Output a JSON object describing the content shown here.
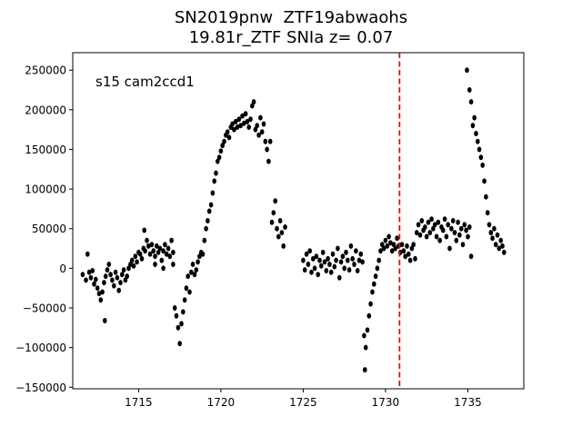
{
  "chart_data": {
    "type": "scatter",
    "title_line1": "SN2019pnw  ZTF19abwaohs",
    "title_line2": "19.81r_ZTF SNIa z= 0.07",
    "annotation": "s15 cam2ccd1",
    "xlabel": "",
    "ylabel": "",
    "xlim": [
      1711.0,
      1738.4
    ],
    "ylim": [
      -152000,
      272000
    ],
    "xticks": [
      {
        "value": 1715,
        "label": "1715"
      },
      {
        "value": 1720,
        "label": "1720"
      },
      {
        "value": 1725,
        "label": "1725"
      },
      {
        "value": 1730,
        "label": "1730"
      },
      {
        "value": 1735,
        "label": "1735"
      }
    ],
    "yticks": [
      {
        "value": -150000,
        "label": "−150000"
      },
      {
        "value": -100000,
        "label": "−100000"
      },
      {
        "value": -50000,
        "label": "−50000"
      },
      {
        "value": 0,
        "label": "0"
      },
      {
        "value": 50000,
        "label": "50000"
      },
      {
        "value": 100000,
        "label": "100000"
      },
      {
        "value": 150000,
        "label": "150000"
      },
      {
        "value": 200000,
        "label": "200000"
      },
      {
        "value": 250000,
        "label": "250000"
      }
    ],
    "vline": {
      "x": 1730.85,
      "color": "#ff0000",
      "style": "dashed"
    },
    "marker_color": "#000000",
    "grid": false,
    "series": [
      {
        "values": [
          [
            1711.6,
            -8000
          ],
          [
            1711.8,
            -15000
          ],
          [
            1711.9,
            18000
          ],
          [
            1712.0,
            -5000
          ],
          [
            1712.1,
            -12000
          ],
          [
            1712.2,
            -3000
          ],
          [
            1712.3,
            -20000
          ],
          [
            1712.4,
            -14000
          ],
          [
            1712.5,
            -25000
          ],
          [
            1712.6,
            -32000
          ],
          [
            1712.7,
            -40000
          ],
          [
            1712.8,
            -30000
          ],
          [
            1712.9,
            -18000
          ],
          [
            1712.95,
            -66000
          ],
          [
            1713.0,
            -10000
          ],
          [
            1713.1,
            -2000
          ],
          [
            1713.2,
            5000
          ],
          [
            1713.3,
            -8000
          ],
          [
            1713.4,
            -15000
          ],
          [
            1713.5,
            -22000
          ],
          [
            1713.6,
            -5000
          ],
          [
            1713.7,
            -12000
          ],
          [
            1713.8,
            -28000
          ],
          [
            1713.9,
            -18000
          ],
          [
            1714.0,
            -8000
          ],
          [
            1714.1,
            -2000
          ],
          [
            1714.2,
            -15000
          ],
          [
            1714.3,
            -10000
          ],
          [
            1714.4,
            0
          ],
          [
            1714.5,
            5000
          ],
          [
            1714.6,
            10000
          ],
          [
            1714.7,
            3000
          ],
          [
            1714.8,
            15000
          ],
          [
            1714.9,
            8000
          ],
          [
            1715.0,
            20000
          ],
          [
            1715.1,
            18000
          ],
          [
            1715.2,
            12000
          ],
          [
            1715.3,
            25000
          ],
          [
            1715.4,
            22000
          ],
          [
            1715.5,
            35000
          ],
          [
            1715.6,
            28000
          ],
          [
            1715.7,
            18000
          ],
          [
            1715.8,
            30000
          ],
          [
            1715.9,
            22000
          ],
          [
            1716.0,
            15000
          ],
          [
            1716.1,
            28000
          ],
          [
            1716.2,
            20000
          ],
          [
            1716.3,
            25000
          ],
          [
            1716.4,
            10000
          ],
          [
            1716.5,
            22000
          ],
          [
            1716.6,
            30000
          ],
          [
            1716.7,
            18000
          ],
          [
            1716.8,
            25000
          ],
          [
            1716.9,
            15000
          ],
          [
            1717.0,
            35000
          ],
          [
            1717.1,
            20000
          ],
          [
            1715.35,
            48000
          ],
          [
            1716.0,
            5000
          ],
          [
            1716.5,
            0
          ],
          [
            1717.1,
            5000
          ],
          [
            1717.2,
            -50000
          ],
          [
            1717.3,
            -60000
          ],
          [
            1717.4,
            -75000
          ],
          [
            1717.5,
            -95000
          ],
          [
            1717.6,
            -70000
          ],
          [
            1717.7,
            -55000
          ],
          [
            1717.8,
            -40000
          ],
          [
            1717.9,
            -25000
          ],
          [
            1718.0,
            -10000
          ],
          [
            1718.1,
            -30000
          ],
          [
            1718.2,
            -5000
          ],
          [
            1718.3,
            5000
          ],
          [
            1718.4,
            -8000
          ],
          [
            1718.5,
            -2000
          ],
          [
            1718.6,
            8000
          ],
          [
            1718.7,
            15000
          ],
          [
            1718.8,
            20000
          ],
          [
            1718.9,
            18000
          ],
          [
            1719.0,
            35000
          ],
          [
            1719.1,
            50000
          ],
          [
            1719.2,
            60000
          ],
          [
            1719.3,
            72000
          ],
          [
            1719.4,
            80000
          ],
          [
            1719.5,
            95000
          ],
          [
            1719.6,
            110000
          ],
          [
            1719.7,
            120000
          ],
          [
            1719.8,
            135000
          ],
          [
            1719.9,
            140000
          ],
          [
            1720.0,
            148000
          ],
          [
            1720.1,
            155000
          ],
          [
            1720.2,
            160000
          ],
          [
            1720.3,
            168000
          ],
          [
            1720.4,
            172000
          ],
          [
            1720.5,
            165000
          ],
          [
            1720.6,
            178000
          ],
          [
            1720.7,
            182000
          ],
          [
            1720.8,
            175000
          ],
          [
            1720.9,
            185000
          ],
          [
            1721.0,
            178000
          ],
          [
            1721.1,
            188000
          ],
          [
            1721.2,
            180000
          ],
          [
            1721.3,
            192000
          ],
          [
            1721.4,
            183000
          ],
          [
            1721.5,
            195000
          ],
          [
            1721.6,
            185000
          ],
          [
            1721.7,
            178000
          ],
          [
            1721.8,
            188000
          ],
          [
            1721.9,
            205000
          ],
          [
            1722.0,
            210000
          ],
          [
            1722.1,
            175000
          ],
          [
            1722.2,
            180000
          ],
          [
            1722.3,
            168000
          ],
          [
            1722.4,
            190000
          ],
          [
            1722.5,
            172000
          ],
          [
            1722.6,
            182000
          ],
          [
            1722.7,
            160000
          ],
          [
            1722.8,
            150000
          ],
          [
            1722.9,
            135000
          ],
          [
            1723.0,
            160000
          ],
          [
            1723.1,
            58000
          ],
          [
            1723.2,
            70000
          ],
          [
            1723.3,
            85000
          ],
          [
            1723.4,
            50000
          ],
          [
            1723.5,
            40000
          ],
          [
            1723.6,
            60000
          ],
          [
            1723.7,
            45000
          ],
          [
            1723.8,
            28000
          ],
          [
            1723.9,
            52000
          ],
          [
            1725.0,
            10000
          ],
          [
            1725.1,
            -2000
          ],
          [
            1725.2,
            18000
          ],
          [
            1725.3,
            5000
          ],
          [
            1725.4,
            22000
          ],
          [
            1725.5,
            -5000
          ],
          [
            1725.6,
            12000
          ],
          [
            1725.7,
            0
          ],
          [
            1725.8,
            15000
          ],
          [
            1725.9,
            -8000
          ],
          [
            1726.0,
            10000
          ],
          [
            1726.1,
            3000
          ],
          [
            1726.2,
            20000
          ],
          [
            1726.3,
            8000
          ],
          [
            1726.4,
            -3000
          ],
          [
            1726.5,
            12000
          ],
          [
            1726.6,
            5000
          ],
          [
            1726.7,
            -5000
          ],
          [
            1726.8,
            18000
          ],
          [
            1726.9,
            2000
          ],
          [
            1727.0,
            10000
          ],
          [
            1727.1,
            25000
          ],
          [
            1727.2,
            -12000
          ],
          [
            1727.3,
            8000
          ],
          [
            1727.4,
            15000
          ],
          [
            1727.5,
            0
          ],
          [
            1727.6,
            20000
          ],
          [
            1727.7,
            10000
          ],
          [
            1727.8,
            -2000
          ],
          [
            1727.9,
            28000
          ],
          [
            1728.0,
            12000
          ],
          [
            1728.1,
            5000
          ],
          [
            1728.2,
            22000
          ],
          [
            1728.3,
            -3000
          ],
          [
            1728.4,
            10000
          ],
          [
            1728.5,
            18000
          ],
          [
            1728.6,
            8000
          ],
          [
            1728.7,
            -85000
          ],
          [
            1728.75,
            -128000
          ],
          [
            1728.8,
            -100000
          ],
          [
            1728.9,
            -78000
          ],
          [
            1729.0,
            -60000
          ],
          [
            1729.1,
            -45000
          ],
          [
            1729.2,
            -30000
          ],
          [
            1729.3,
            -20000
          ],
          [
            1729.4,
            -10000
          ],
          [
            1729.5,
            0
          ],
          [
            1729.6,
            10000
          ],
          [
            1729.7,
            22000
          ],
          [
            1729.8,
            30000
          ],
          [
            1729.9,
            25000
          ],
          [
            1730.0,
            35000
          ],
          [
            1730.1,
            28000
          ],
          [
            1730.2,
            40000
          ],
          [
            1730.3,
            32000
          ],
          [
            1730.4,
            22000
          ],
          [
            1730.5,
            30000
          ],
          [
            1730.6,
            25000
          ],
          [
            1730.7,
            38000
          ],
          [
            1730.8,
            28000
          ],
          [
            1730.9,
            20000
          ],
          [
            1731.0,
            30000
          ],
          [
            1731.1,
            22000
          ],
          [
            1731.2,
            15000
          ],
          [
            1731.3,
            28000
          ],
          [
            1731.4,
            18000
          ],
          [
            1731.5,
            10000
          ],
          [
            1731.6,
            25000
          ],
          [
            1731.7,
            30000
          ],
          [
            1731.8,
            12000
          ],
          [
            1731.9,
            45000
          ],
          [
            1732.0,
            55000
          ],
          [
            1732.1,
            42000
          ],
          [
            1732.2,
            60000
          ],
          [
            1732.3,
            48000
          ],
          [
            1732.4,
            52000
          ],
          [
            1732.5,
            40000
          ],
          [
            1732.6,
            58000
          ],
          [
            1732.7,
            45000
          ],
          [
            1732.8,
            62000
          ],
          [
            1732.9,
            50000
          ],
          [
            1733.0,
            55000
          ],
          [
            1733.1,
            40000
          ],
          [
            1733.2,
            58000
          ],
          [
            1733.3,
            35000
          ],
          [
            1733.4,
            52000
          ],
          [
            1733.5,
            48000
          ],
          [
            1733.6,
            62000
          ],
          [
            1733.7,
            40000
          ],
          [
            1733.8,
            55000
          ],
          [
            1733.9,
            25000
          ],
          [
            1734.0,
            50000
          ],
          [
            1734.1,
            60000
          ],
          [
            1734.2,
            45000
          ],
          [
            1734.3,
            35000
          ],
          [
            1734.4,
            58000
          ],
          [
            1734.5,
            42000
          ],
          [
            1734.6,
            50000
          ],
          [
            1734.7,
            30000
          ],
          [
            1734.8,
            55000
          ],
          [
            1734.9,
            48000
          ],
          [
            1735.0,
            40000
          ],
          [
            1735.1,
            52000
          ],
          [
            1735.2,
            15000
          ],
          [
            1734.95,
            250000
          ],
          [
            1735.1,
            225000
          ],
          [
            1735.2,
            210000
          ],
          [
            1735.3,
            180000
          ],
          [
            1735.4,
            190000
          ],
          [
            1735.5,
            170000
          ],
          [
            1735.6,
            160000
          ],
          [
            1735.7,
            150000
          ],
          [
            1735.8,
            140000
          ],
          [
            1735.9,
            130000
          ],
          [
            1736.0,
            110000
          ],
          [
            1736.1,
            90000
          ],
          [
            1736.2,
            70000
          ],
          [
            1736.3,
            55000
          ],
          [
            1736.4,
            45000
          ],
          [
            1736.5,
            38000
          ],
          [
            1736.6,
            50000
          ],
          [
            1736.7,
            30000
          ],
          [
            1736.8,
            42000
          ],
          [
            1736.9,
            25000
          ],
          [
            1737.0,
            35000
          ],
          [
            1737.1,
            28000
          ],
          [
            1737.2,
            20000
          ]
        ]
      }
    ]
  }
}
